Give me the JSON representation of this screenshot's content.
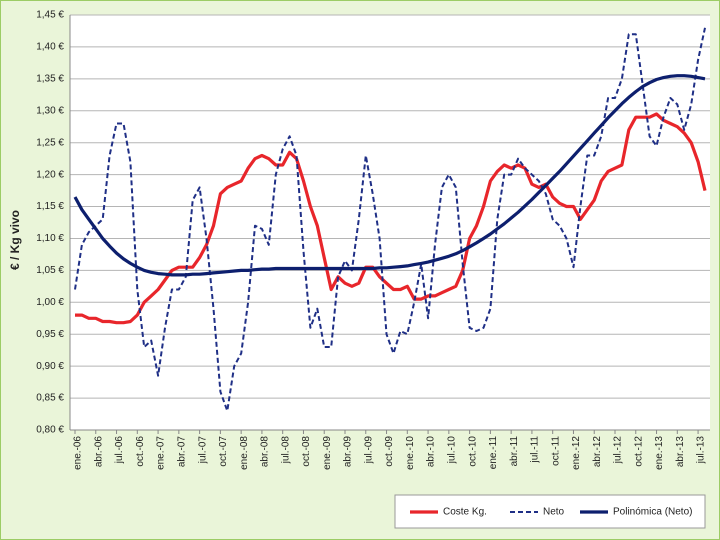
{
  "chart_data": {
    "type": "line",
    "y_label": "€ / Kg vivo",
    "categories": [
      "ene.-06",
      null,
      null,
      "abr.-06",
      null,
      null,
      "jul.-06",
      null,
      null,
      "oct.-06",
      null,
      null,
      "ene.-07",
      null,
      null,
      "abr.-07",
      null,
      null,
      "jul.-07",
      null,
      null,
      "oct.-07",
      null,
      null,
      "ene.-08",
      null,
      null,
      "abr.-08",
      null,
      null,
      "jul.-08",
      null,
      null,
      "oct.-08",
      null,
      null,
      "ene.-09",
      null,
      null,
      "abr.-09",
      null,
      null,
      "jul.-09",
      null,
      null,
      "oct.-09",
      null,
      null,
      "ene.-10",
      null,
      null,
      "abr.-10",
      null,
      null,
      "jul.-10",
      null,
      null,
      "oct.-10",
      null,
      null,
      "ene.-11",
      null,
      null,
      "abr.-11",
      null,
      null,
      "jul.-11",
      null,
      null,
      "oct.-11",
      null,
      null,
      "ene.-12",
      null,
      null,
      "abr.-12",
      null,
      null,
      "jul.-12",
      null,
      null,
      "oct.-12",
      null,
      null,
      "ene.-13",
      null,
      null,
      "abr.-13",
      null,
      null,
      "jul.-13",
      null
    ],
    "series": [
      {
        "name": "Coste Kg.",
        "color": "#e8262b",
        "dash": false,
        "values": [
          0.98,
          0.98,
          0.975,
          0.975,
          0.97,
          0.97,
          0.968,
          0.968,
          0.97,
          0.98,
          1.0,
          1.01,
          1.02,
          1.035,
          1.05,
          1.055,
          1.055,
          1.055,
          1.07,
          1.09,
          1.12,
          1.17,
          1.18,
          1.185,
          1.19,
          1.21,
          1.225,
          1.23,
          1.225,
          1.215,
          1.215,
          1.235,
          1.225,
          1.19,
          1.15,
          1.12,
          1.07,
          1.02,
          1.04,
          1.03,
          1.025,
          1.03,
          1.055,
          1.055,
          1.04,
          1.03,
          1.02,
          1.02,
          1.025,
          1.005,
          1.005,
          1.01,
          1.01,
          1.015,
          1.02,
          1.025,
          1.05,
          1.1,
          1.12,
          1.15,
          1.19,
          1.205,
          1.215,
          1.21,
          1.215,
          1.21,
          1.185,
          1.18,
          1.185,
          1.165,
          1.155,
          1.15,
          1.15,
          1.13,
          1.145,
          1.16,
          1.19,
          1.205,
          1.21,
          1.215,
          1.27,
          1.29,
          1.29,
          1.29,
          1.295,
          1.285,
          1.28,
          1.275,
          1.265,
          1.25,
          1.22,
          1.175
        ]
      },
      {
        "name": "Neto",
        "color": "#1f2f86",
        "dash": true,
        "values": [
          1.02,
          1.09,
          1.11,
          1.12,
          1.13,
          1.23,
          1.28,
          1.28,
          1.22,
          1.02,
          0.93,
          0.94,
          0.885,
          0.96,
          1.02,
          1.02,
          1.04,
          1.16,
          1.18,
          1.1,
          0.99,
          0.86,
          0.83,
          0.9,
          0.92,
          1.0,
          1.12,
          1.115,
          1.09,
          1.2,
          1.24,
          1.26,
          1.23,
          1.08,
          0.96,
          0.99,
          0.93,
          0.93,
          1.04,
          1.065,
          1.05,
          1.13,
          1.23,
          1.17,
          1.1,
          0.95,
          0.92,
          0.955,
          0.95,
          1.0,
          1.06,
          0.975,
          1.09,
          1.18,
          1.2,
          1.18,
          1.06,
          0.96,
          0.955,
          0.96,
          0.99,
          1.13,
          1.2,
          1.2,
          1.225,
          1.21,
          1.2,
          1.19,
          1.17,
          1.13,
          1.12,
          1.1,
          1.055,
          1.15,
          1.23,
          1.23,
          1.26,
          1.32,
          1.32,
          1.35,
          1.42,
          1.42,
          1.34,
          1.26,
          1.245,
          1.29,
          1.32,
          1.31,
          1.27,
          1.31,
          1.38,
          1.43
        ]
      },
      {
        "name": "Polinómica (Neto)",
        "color": "#0d1f6e",
        "dash": false,
        "values": [
          1.165,
          1.145,
          1.13,
          1.115,
          1.1,
          1.088,
          1.077,
          1.068,
          1.061,
          1.055,
          1.05,
          1.047,
          1.045,
          1.044,
          1.043,
          1.043,
          1.043,
          1.044,
          1.044,
          1.045,
          1.046,
          1.047,
          1.048,
          1.049,
          1.05,
          1.05,
          1.051,
          1.052,
          1.052,
          1.053,
          1.053,
          1.053,
          1.053,
          1.053,
          1.053,
          1.053,
          1.053,
          1.053,
          1.053,
          1.053,
          1.053,
          1.053,
          1.053,
          1.053,
          1.054,
          1.054,
          1.055,
          1.056,
          1.057,
          1.059,
          1.061,
          1.063,
          1.066,
          1.069,
          1.072,
          1.076,
          1.081,
          1.087,
          1.093,
          1.1,
          1.107,
          1.115,
          1.123,
          1.132,
          1.141,
          1.151,
          1.161,
          1.172,
          1.183,
          1.194,
          1.205,
          1.217,
          1.229,
          1.241,
          1.253,
          1.265,
          1.277,
          1.289,
          1.3,
          1.311,
          1.321,
          1.33,
          1.338,
          1.344,
          1.349,
          1.352,
          1.354,
          1.355,
          1.355,
          1.354,
          1.352,
          1.35
        ]
      }
    ],
    "ylim": [
      0.8,
      1.45
    ],
    "yticks": [
      {
        "value": 0.8,
        "label": "0,80 €"
      },
      {
        "value": 0.85,
        "label": "0,85 €"
      },
      {
        "value": 0.9,
        "label": "0,90 €"
      },
      {
        "value": 0.95,
        "label": "0,95 €"
      },
      {
        "value": 1.0,
        "label": "1,00 €"
      },
      {
        "value": 1.05,
        "label": "1,05 €"
      },
      {
        "value": 1.1,
        "label": "1,10 €"
      },
      {
        "value": 1.15,
        "label": "1,15 €"
      },
      {
        "value": 1.2,
        "label": "1,20 €"
      },
      {
        "value": 1.25,
        "label": "1,25 €"
      },
      {
        "value": 1.3,
        "label": "1,30 €"
      },
      {
        "value": 1.35,
        "label": "1,35 €"
      },
      {
        "value": 1.4,
        "label": "1,40 €"
      },
      {
        "value": 1.45,
        "label": "1,45 €"
      }
    ],
    "grid": true,
    "legend": "bottom-right"
  }
}
